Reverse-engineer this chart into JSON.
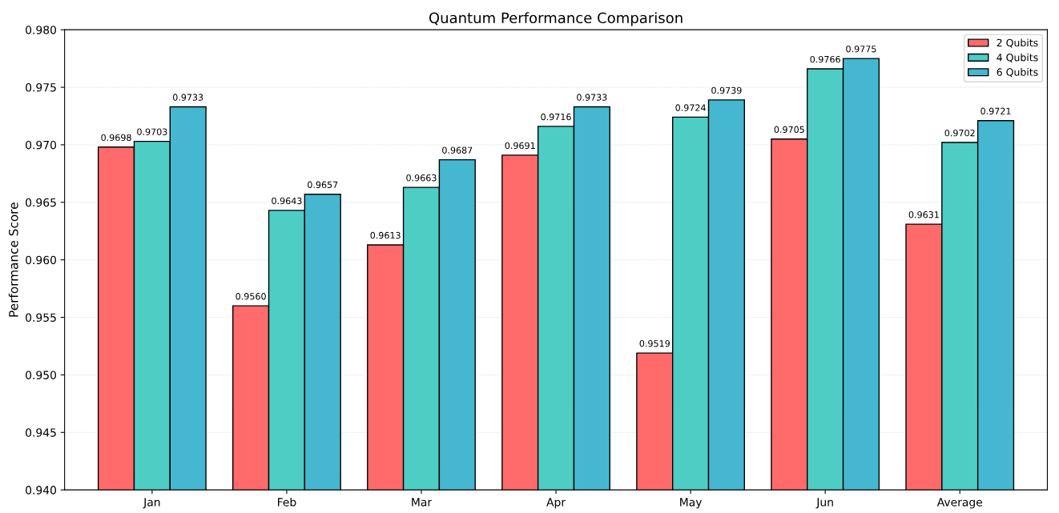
{
  "chart_data": {
    "type": "bar",
    "title": "Quantum Performance Comparison",
    "ylabel": "Performance Score",
    "categories": [
      "Jan",
      "Feb",
      "Mar",
      "Apr",
      "May",
      "Jun",
      "Average"
    ],
    "series": [
      {
        "name": "2 Qubits",
        "color": "#ff6b6b",
        "values": [
          0.9698,
          0.956,
          0.9613,
          0.9691,
          0.9519,
          0.9705,
          0.9631
        ],
        "value_labels": [
          "0.9698",
          "0.9560",
          "0.9613",
          "0.9691",
          "0.9519",
          "0.9705",
          "0.9631"
        ]
      },
      {
        "name": "4 Qubits",
        "color": "#4ecdc4",
        "values": [
          0.9703,
          0.9643,
          0.9663,
          0.9716,
          0.9724,
          0.9766,
          0.9702
        ],
        "value_labels": [
          "0.9703",
          "0.9643",
          "0.9663",
          "0.9716",
          "0.9724",
          "0.9766",
          "0.9702"
        ]
      },
      {
        "name": "6 Qubits",
        "color": "#45b7d1",
        "values": [
          0.9733,
          0.9657,
          0.9687,
          0.9733,
          0.9739,
          0.9775,
          0.9721
        ],
        "value_labels": [
          "0.9733",
          "0.9657",
          "0.9687",
          "0.9733",
          "0.9739",
          "0.9775",
          "0.9721"
        ]
      }
    ],
    "ylim": [
      0.94,
      0.98
    ],
    "yticks": [
      {
        "value": 0.94,
        "label": "0.940"
      },
      {
        "value": 0.945,
        "label": "0.945"
      },
      {
        "value": 0.95,
        "label": "0.950"
      },
      {
        "value": 0.955,
        "label": "0.955"
      },
      {
        "value": 0.96,
        "label": "0.960"
      },
      {
        "value": 0.965,
        "label": "0.965"
      },
      {
        "value": 0.97,
        "label": "0.970"
      },
      {
        "value": 0.975,
        "label": "0.975"
      },
      {
        "value": 0.98,
        "label": "0.980"
      }
    ],
    "grid": "y",
    "legend": "top right"
  }
}
